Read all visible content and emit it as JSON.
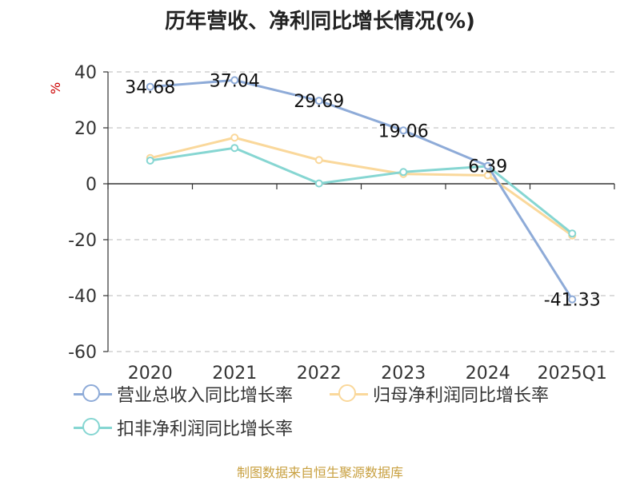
{
  "chart_data": {
    "type": "line",
    "title": "历年营收、净利同比增长情况(%)",
    "ylabel": "%",
    "categories": [
      "2020",
      "2021",
      "2022",
      "2023",
      "2024",
      "2025Q1"
    ],
    "ylim": [
      -60,
      40
    ],
    "yticks": [
      "40",
      "20",
      "0",
      "-20",
      "-40",
      "-60"
    ],
    "grid": true,
    "legend_position": "bottom",
    "series": [
      {
        "name": "营业总收入同比增长率",
        "color": "#8eabd8",
        "values": [
          34.68,
          37.04,
          29.69,
          19.06,
          6.39,
          -41.33
        ],
        "labels": [
          "34.68",
          "37.04",
          "29.69",
          "19.06",
          "6.39",
          "-41.33"
        ]
      },
      {
        "name": "归母净利润同比增长率",
        "color": "#fad89b",
        "values": [
          9.2,
          16.5,
          8.5,
          3.5,
          3.0,
          -18.5
        ]
      },
      {
        "name": "扣非净利润同比增长率",
        "color": "#86d6d2",
        "values": [
          8.3,
          12.8,
          0.1,
          4.2,
          6.3,
          -17.8
        ]
      }
    ]
  },
  "source": "制图数据来自恒生聚源数据库"
}
